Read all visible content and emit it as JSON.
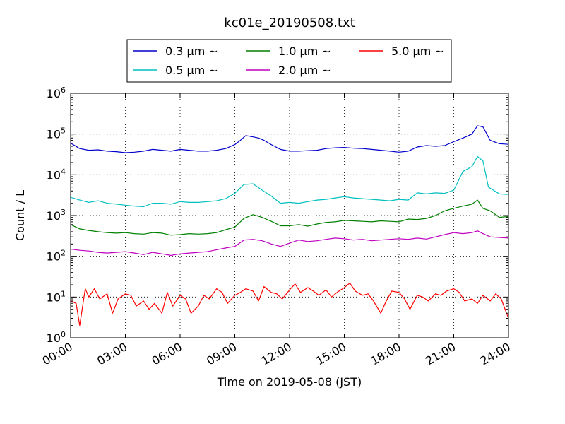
{
  "chart_data": {
    "type": "line",
    "title": "kc01e_20190508.txt",
    "xlabel": "Time on 2019-05-08 (JST)",
    "ylabel": "Count / L",
    "x_unit": "hours",
    "xlim": [
      0,
      24
    ],
    "x_ticks": [
      0,
      3,
      6,
      9,
      12,
      15,
      18,
      21,
      24
    ],
    "x_tick_labels": [
      "00:00",
      "03:00",
      "06:00",
      "09:00",
      "12:00",
      "15:00",
      "18:00",
      "21:00",
      "24:00"
    ],
    "y_scale": "log",
    "ylim": [
      1,
      1000000
    ],
    "y_ticks": [
      1,
      10,
      100,
      1000,
      10000,
      100000,
      1000000
    ],
    "y_tick_labels": [
      {
        "base": "10",
        "exp": "0"
      },
      {
        "base": "10",
        "exp": "1"
      },
      {
        "base": "10",
        "exp": "2"
      },
      {
        "base": "10",
        "exp": "3"
      },
      {
        "base": "10",
        "exp": "4"
      },
      {
        "base": "10",
        "exp": "5"
      },
      {
        "base": "10",
        "exp": "6"
      }
    ],
    "grid": true,
    "legend_position": "top-center",
    "legend_suffix": "~",
    "series": [
      {
        "name": "0.3 μm",
        "color": "#0000cc",
        "points": [
          [
            0,
            60000
          ],
          [
            0.5,
            44000
          ],
          [
            1,
            40000
          ],
          [
            1.5,
            41000
          ],
          [
            2,
            38000
          ],
          [
            2.5,
            37000
          ],
          [
            3,
            35000
          ],
          [
            3.5,
            36000
          ],
          [
            4,
            38000
          ],
          [
            4.5,
            42000
          ],
          [
            5,
            40000
          ],
          [
            5.5,
            38000
          ],
          [
            6,
            42000
          ],
          [
            6.5,
            40000
          ],
          [
            7,
            38000
          ],
          [
            7.5,
            38000
          ],
          [
            8,
            40000
          ],
          [
            8.5,
            44000
          ],
          [
            9,
            55000
          ],
          [
            9.3,
            70000
          ],
          [
            9.6,
            92000
          ],
          [
            10,
            85000
          ],
          [
            10.3,
            80000
          ],
          [
            10.6,
            70000
          ],
          [
            11,
            55000
          ],
          [
            11.5,
            42000
          ],
          [
            12,
            38000
          ],
          [
            12.5,
            38000
          ],
          [
            13,
            39000
          ],
          [
            13.5,
            40000
          ],
          [
            14,
            44000
          ],
          [
            14.5,
            46000
          ],
          [
            15,
            47000
          ],
          [
            15.5,
            45000
          ],
          [
            16,
            44000
          ],
          [
            16.5,
            42000
          ],
          [
            17,
            40000
          ],
          [
            17.5,
            38000
          ],
          [
            18,
            36000
          ],
          [
            18.5,
            38000
          ],
          [
            19,
            48000
          ],
          [
            19.5,
            52000
          ],
          [
            20,
            50000
          ],
          [
            20.5,
            52000
          ],
          [
            21,
            65000
          ],
          [
            21.5,
            80000
          ],
          [
            22,
            100000
          ],
          [
            22.3,
            160000
          ],
          [
            22.6,
            150000
          ],
          [
            23,
            70000
          ],
          [
            23.5,
            58000
          ],
          [
            24,
            56000
          ]
        ]
      },
      {
        "name": "0.5 μm",
        "color": "#00bfbf",
        "points": [
          [
            0,
            2800
          ],
          [
            0.5,
            2400
          ],
          [
            1,
            2100
          ],
          [
            1.5,
            2300
          ],
          [
            2,
            2000
          ],
          [
            2.5,
            1900
          ],
          [
            3,
            1800
          ],
          [
            3.5,
            1700
          ],
          [
            4,
            1650
          ],
          [
            4.5,
            2000
          ],
          [
            5,
            2000
          ],
          [
            5.5,
            1900
          ],
          [
            6,
            2200
          ],
          [
            6.5,
            2100
          ],
          [
            7,
            2100
          ],
          [
            7.5,
            2200
          ],
          [
            8,
            2300
          ],
          [
            8.5,
            2600
          ],
          [
            9,
            3500
          ],
          [
            9.5,
            5800
          ],
          [
            10,
            6000
          ],
          [
            10.5,
            4200
          ],
          [
            11,
            3000
          ],
          [
            11.5,
            2000
          ],
          [
            12,
            2100
          ],
          [
            12.5,
            2000
          ],
          [
            13,
            2200
          ],
          [
            13.5,
            2400
          ],
          [
            14,
            2500
          ],
          [
            14.5,
            2700
          ],
          [
            15,
            2900
          ],
          [
            15.5,
            2700
          ],
          [
            16,
            2600
          ],
          [
            16.5,
            2500
          ],
          [
            17,
            2400
          ],
          [
            17.5,
            2300
          ],
          [
            18,
            2500
          ],
          [
            18.5,
            2400
          ],
          [
            19,
            3600
          ],
          [
            19.5,
            3400
          ],
          [
            20,
            3600
          ],
          [
            20.5,
            3500
          ],
          [
            21,
            4200
          ],
          [
            21.5,
            12000
          ],
          [
            22,
            16000
          ],
          [
            22.3,
            28000
          ],
          [
            22.6,
            22000
          ],
          [
            22.9,
            5000
          ],
          [
            23.5,
            3400
          ],
          [
            24,
            3300
          ]
        ]
      },
      {
        "name": "1.0 μm",
        "color": "#008000",
        "points": [
          [
            0,
            600
          ],
          [
            0.5,
            470
          ],
          [
            1,
            430
          ],
          [
            1.5,
            400
          ],
          [
            2,
            380
          ],
          [
            2.5,
            370
          ],
          [
            3,
            380
          ],
          [
            3.5,
            360
          ],
          [
            4,
            350
          ],
          [
            4.5,
            380
          ],
          [
            5,
            370
          ],
          [
            5.5,
            330
          ],
          [
            6,
            340
          ],
          [
            6.5,
            360
          ],
          [
            7,
            350
          ],
          [
            7.5,
            360
          ],
          [
            8,
            380
          ],
          [
            8.5,
            450
          ],
          [
            9,
            520
          ],
          [
            9.5,
            850
          ],
          [
            10,
            1050
          ],
          [
            10.5,
            900
          ],
          [
            11,
            720
          ],
          [
            11.5,
            560
          ],
          [
            12,
            560
          ],
          [
            12.5,
            600
          ],
          [
            13,
            550
          ],
          [
            13.5,
            620
          ],
          [
            14,
            680
          ],
          [
            14.5,
            700
          ],
          [
            15,
            760
          ],
          [
            15.5,
            740
          ],
          [
            16,
            720
          ],
          [
            16.5,
            700
          ],
          [
            17,
            740
          ],
          [
            17.5,
            720
          ],
          [
            18,
            700
          ],
          [
            18.5,
            820
          ],
          [
            19,
            800
          ],
          [
            19.5,
            850
          ],
          [
            20,
            1000
          ],
          [
            20.5,
            1300
          ],
          [
            21,
            1500
          ],
          [
            21.5,
            1700
          ],
          [
            22,
            1900
          ],
          [
            22.3,
            2400
          ],
          [
            22.6,
            1500
          ],
          [
            23,
            1300
          ],
          [
            23.5,
            900
          ],
          [
            24,
            950
          ]
        ]
      },
      {
        "name": "2.0 μm",
        "color": "#bf00bf",
        "points": [
          [
            0,
            150
          ],
          [
            0.5,
            140
          ],
          [
            1,
            135
          ],
          [
            1.5,
            125
          ],
          [
            2,
            120
          ],
          [
            2.5,
            125
          ],
          [
            3,
            130
          ],
          [
            3.5,
            120
          ],
          [
            4,
            110
          ],
          [
            4.5,
            125
          ],
          [
            5,
            115
          ],
          [
            5.5,
            105
          ],
          [
            6,
            115
          ],
          [
            6.5,
            120
          ],
          [
            7,
            125
          ],
          [
            7.5,
            130
          ],
          [
            8,
            145
          ],
          [
            8.5,
            160
          ],
          [
            9,
            175
          ],
          [
            9.5,
            250
          ],
          [
            10,
            260
          ],
          [
            10.5,
            240
          ],
          [
            11,
            200
          ],
          [
            11.5,
            175
          ],
          [
            12,
            210
          ],
          [
            12.5,
            250
          ],
          [
            13,
            230
          ],
          [
            13.5,
            240
          ],
          [
            14,
            260
          ],
          [
            14.5,
            280
          ],
          [
            15,
            270
          ],
          [
            15.5,
            250
          ],
          [
            16,
            260
          ],
          [
            16.5,
            240
          ],
          [
            17,
            250
          ],
          [
            17.5,
            260
          ],
          [
            18,
            270
          ],
          [
            18.5,
            260
          ],
          [
            19,
            280
          ],
          [
            19.5,
            265
          ],
          [
            20,
            300
          ],
          [
            20.5,
            340
          ],
          [
            21,
            380
          ],
          [
            21.5,
            360
          ],
          [
            22,
            380
          ],
          [
            22.3,
            420
          ],
          [
            22.6,
            360
          ],
          [
            23,
            300
          ],
          [
            23.5,
            290
          ],
          [
            24,
            280
          ]
        ]
      },
      {
        "name": "5.0 μm",
        "color": "#ff0000",
        "points": [
          [
            0,
            8
          ],
          [
            0.3,
            7
          ],
          [
            0.5,
            2
          ],
          [
            0.8,
            16
          ],
          [
            1,
            10
          ],
          [
            1.3,
            16
          ],
          [
            1.6,
            9
          ],
          [
            2,
            12
          ],
          [
            2.3,
            4
          ],
          [
            2.6,
            9
          ],
          [
            3,
            12
          ],
          [
            3.3,
            11
          ],
          [
            3.6,
            6
          ],
          [
            4,
            8
          ],
          [
            4.3,
            5
          ],
          [
            4.6,
            7
          ],
          [
            5,
            4
          ],
          [
            5.3,
            13
          ],
          [
            5.6,
            6
          ],
          [
            6,
            11
          ],
          [
            6.3,
            9
          ],
          [
            6.6,
            4
          ],
          [
            7,
            6
          ],
          [
            7.3,
            11
          ],
          [
            7.6,
            9
          ],
          [
            8,
            16
          ],
          [
            8.3,
            13
          ],
          [
            8.6,
            7
          ],
          [
            9,
            11
          ],
          [
            9.3,
            13
          ],
          [
            9.6,
            16
          ],
          [
            10,
            14
          ],
          [
            10.3,
            8
          ],
          [
            10.6,
            18
          ],
          [
            11,
            13
          ],
          [
            11.3,
            12
          ],
          [
            11.6,
            9
          ],
          [
            12,
            15
          ],
          [
            12.3,
            21
          ],
          [
            12.6,
            13
          ],
          [
            13,
            17
          ],
          [
            13.3,
            14
          ],
          [
            13.6,
            11
          ],
          [
            14,
            15
          ],
          [
            14.3,
            10
          ],
          [
            14.6,
            13
          ],
          [
            15,
            17
          ],
          [
            15.3,
            22
          ],
          [
            15.6,
            14
          ],
          [
            16,
            11
          ],
          [
            16.3,
            12
          ],
          [
            16.6,
            8
          ],
          [
            17,
            4
          ],
          [
            17.3,
            8
          ],
          [
            17.6,
            14
          ],
          [
            18,
            13
          ],
          [
            18.3,
            9
          ],
          [
            18.6,
            5
          ],
          [
            19,
            11
          ],
          [
            19.3,
            10
          ],
          [
            19.6,
            8
          ],
          [
            20,
            12
          ],
          [
            20.3,
            11
          ],
          [
            20.6,
            14
          ],
          [
            21,
            16
          ],
          [
            21.3,
            13
          ],
          [
            21.6,
            8
          ],
          [
            22,
            9
          ],
          [
            22.3,
            7
          ],
          [
            22.6,
            11
          ],
          [
            23,
            8
          ],
          [
            23.3,
            12
          ],
          [
            23.6,
            9
          ],
          [
            24,
            3
          ]
        ]
      }
    ]
  }
}
